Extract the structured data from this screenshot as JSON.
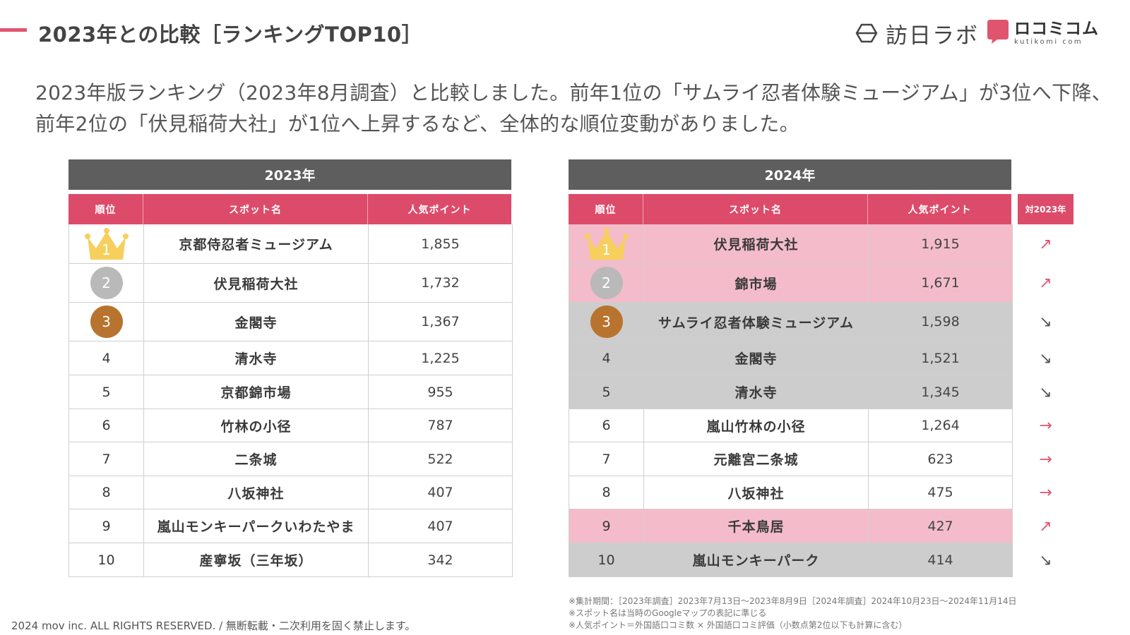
{
  "header": {
    "title": "2023年との比較［ランキングTOP10］",
    "logo_houjin": "訪日ラボ",
    "logo_kuchi_main": "ロコミコム",
    "logo_kuchi_sub": "kutikomi com",
    "accent_color": "#e0556e"
  },
  "lead_text": "2023年版ランキング（2023年8月調査）と比較しました。前年1位の「サムライ忍者体験ミュージアム」が3位へ下降、前年2位の「伏見稲荷大社」が1位へ上昇するなど、全体的な順位変動がありました。",
  "columns": {
    "rank": "順位",
    "spot": "スポット名",
    "points": "人気ポイント",
    "vs": "対2023年"
  },
  "table_2023": {
    "year": "2023年",
    "rows": [
      {
        "rank": "1",
        "name": "京都侍忍者ミュージアム",
        "points": "1,855"
      },
      {
        "rank": "2",
        "name": "伏見稲荷大社",
        "points": "1,732"
      },
      {
        "rank": "3",
        "name": "金閣寺",
        "points": "1,367"
      },
      {
        "rank": "4",
        "name": "清水寺",
        "points": "1,225"
      },
      {
        "rank": "5",
        "name": "京都錦市場",
        "points": "955"
      },
      {
        "rank": "6",
        "name": "竹林の小径",
        "points": "787"
      },
      {
        "rank": "7",
        "name": "二条城",
        "points": "522"
      },
      {
        "rank": "8",
        "name": "八坂神社",
        "points": "407"
      },
      {
        "rank": "9",
        "name": "嵐山モンキーパークいわたやま",
        "points": "407"
      },
      {
        "rank": "10",
        "name": "産寧坂（三年坂）",
        "points": "342"
      }
    ]
  },
  "table_2024": {
    "year": "2024年",
    "rows": [
      {
        "rank": "1",
        "name": "伏見稲荷大社",
        "points": "1,915",
        "trend": "↗",
        "highlight": "pink"
      },
      {
        "rank": "2",
        "name": "錦市場",
        "points": "1,671",
        "trend": "↗",
        "highlight": "pink"
      },
      {
        "rank": "3",
        "name": "サムライ忍者体験ミュージアム",
        "points": "1,598",
        "trend": "↘",
        "highlight": "gray"
      },
      {
        "rank": "4",
        "name": "金閣寺",
        "points": "1,521",
        "trend": "↘",
        "highlight": "gray"
      },
      {
        "rank": "5",
        "name": "清水寺",
        "points": "1,345",
        "trend": "↘",
        "highlight": "gray"
      },
      {
        "rank": "6",
        "name": "嵐山竹林の小径",
        "points": "1,264",
        "trend": "→",
        "highlight": "none"
      },
      {
        "rank": "7",
        "name": "元離宮二条城",
        "points": "623",
        "trend": "→",
        "highlight": "none"
      },
      {
        "rank": "8",
        "name": "八坂神社",
        "points": "475",
        "trend": "→",
        "highlight": "none"
      },
      {
        "rank": "9",
        "name": "千本鳥居",
        "points": "427",
        "trend": "↗",
        "highlight": "pink"
      },
      {
        "rank": "10",
        "name": "嵐山モンキーパーク",
        "points": "414",
        "trend": "↘",
        "highlight": "gray"
      }
    ]
  },
  "notes": [
    "※集計期間：［2023年調査］2023年7月13日〜2023年8月9日［2024年調査］2024年10月23日〜2024年11月14日",
    "※スポット名は当時のGoogleマップの表記に準じる",
    "※人気ポイント＝外国語口コミ数 × 外国語口コミ評価（小数点第2位以下も計算に含む）"
  ],
  "copyright": "2024 mov inc. ALL RIGHTS RESERVED. / 無断転載・二次利用を固く禁止します。",
  "colors": {
    "pink_header": "#dd4b6b",
    "pink_row": "#f4bcca",
    "gray_row": "#cdcdcd",
    "dark_header": "#5e5e5e"
  },
  "icons": {
    "gold": "crown-icon",
    "silver": "silver-medal-icon",
    "bronze": "bronze-medal-icon"
  }
}
